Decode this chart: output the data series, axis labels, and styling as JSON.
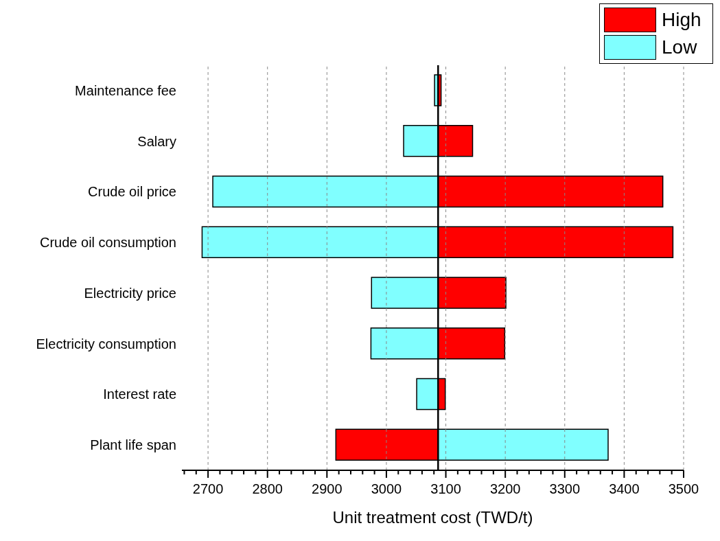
{
  "chart_data": {
    "type": "bar",
    "orientation": "horizontal",
    "categories": [
      "Maintenance fee",
      "Salary",
      "Crude oil price",
      "Crude oil consumption",
      "Electricity price",
      "Electricity consumption",
      "Interest rate",
      "Plant life span"
    ],
    "series": [
      {
        "name": "High",
        "color": "#ff0000",
        "base": [
          3087,
          3087,
          3087,
          3087,
          3087,
          3087,
          3087,
          3087
        ],
        "values": [
          5,
          58,
          378,
          395,
          114,
          112,
          12,
          -172
        ]
      },
      {
        "name": "Low",
        "color": "#80ffff",
        "base": [
          3087,
          3087,
          3087,
          3087,
          3087,
          3087,
          3087,
          3087
        ],
        "values": [
          -6,
          -58,
          -379,
          -397,
          -112,
          -113,
          -36,
          286
        ]
      }
    ],
    "ref_lines": [
      {
        "axis": "x",
        "value": 3087,
        "color": "#000000"
      }
    ],
    "xlabel": "Unit treatment cost (TWD/t)",
    "xlim": [
      2656,
      3500
    ],
    "xticks": [
      {
        "value": 2660,
        "label": null
      },
      {
        "value": 2680,
        "label": null
      },
      2700,
      {
        "value": 2720,
        "label": null
      },
      {
        "value": 2740,
        "label": null
      },
      {
        "value": 2760,
        "label": null
      },
      {
        "value": 2780,
        "label": null
      },
      2800,
      {
        "value": 2820,
        "label": null
      },
      {
        "value": 2840,
        "label": null
      },
      {
        "value": 2860,
        "label": null
      },
      {
        "value": 2880,
        "label": null
      },
      2900,
      {
        "value": 2920,
        "label": null
      },
      {
        "value": 2940,
        "label": null
      },
      {
        "value": 2960,
        "label": null
      },
      {
        "value": 2980,
        "label": null
      },
      3000,
      {
        "value": 3020,
        "label": null
      },
      {
        "value": 3040,
        "label": null
      },
      {
        "value": 3060,
        "label": null
      },
      {
        "value": 3080,
        "label": null
      },
      3100,
      {
        "value": 3120,
        "label": null
      },
      {
        "value": 3140,
        "label": null
      },
      {
        "value": 3160,
        "label": null
      },
      {
        "value": 3180,
        "label": null
      },
      3200,
      {
        "value": 3220,
        "label": null
      },
      {
        "value": 3240,
        "label": null
      },
      {
        "value": 3260,
        "label": null
      },
      {
        "value": 3280,
        "label": null
      },
      3300,
      {
        "value": 3320,
        "label": null
      },
      {
        "value": 3340,
        "label": null
      },
      {
        "value": 3360,
        "label": null
      },
      {
        "value": 3380,
        "label": null
      },
      3400,
      {
        "value": 3420,
        "label": null
      },
      {
        "value": 3440,
        "label": null
      },
      {
        "value": 3460,
        "label": null
      },
      {
        "value": 3480,
        "label": null
      },
      3500
    ],
    "grid": "x",
    "legend": "top right"
  }
}
